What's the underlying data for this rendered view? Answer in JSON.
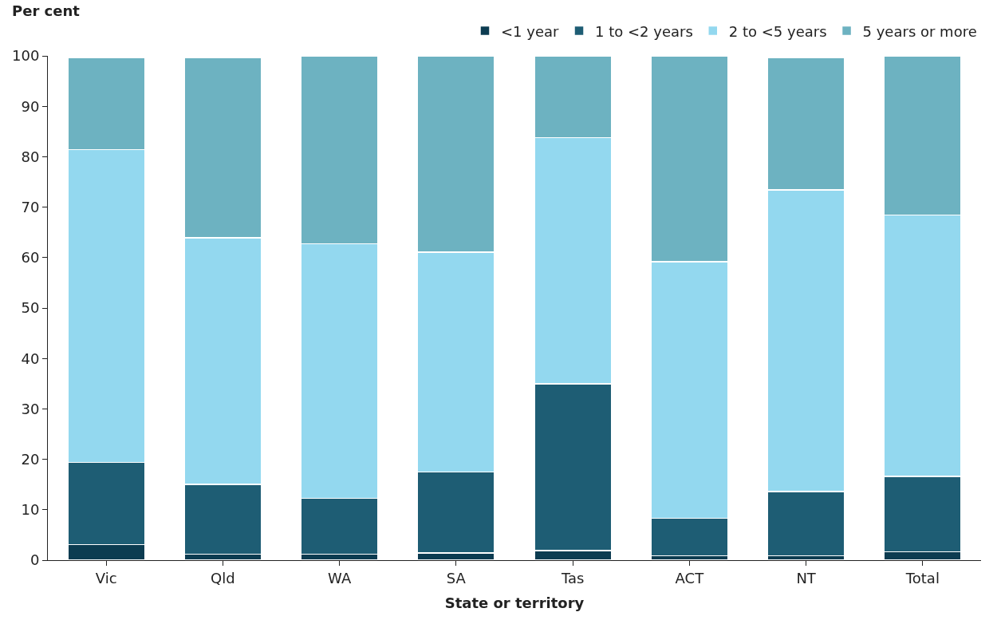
{
  "chart_data": {
    "type": "bar",
    "stacked": true,
    "ylabel": "Per cent",
    "xlabel": "State or territory",
    "categories": [
      "Vic",
      "Qld",
      "WA",
      "SA",
      "Tas",
      "ACT",
      "NT",
      "Total"
    ],
    "series": [
      {
        "name": "<1 year",
        "color": "#0c3c51",
        "values": [
          3.1,
          1.2,
          1.2,
          1.4,
          1.9,
          0.9,
          0.9,
          1.7
        ]
      },
      {
        "name": "1 to <2 years",
        "color": "#1e5d74",
        "values": [
          16.3,
          13.8,
          11.1,
          16.1,
          33.1,
          7.4,
          12.7,
          14.9
        ]
      },
      {
        "name": "2 to <5 years",
        "color": "#93d8ef",
        "values": [
          62.0,
          48.9,
          50.4,
          43.6,
          48.8,
          50.9,
          59.8,
          51.8
        ]
      },
      {
        "name": "5 years or more",
        "color": "#6db2c1",
        "values": [
          18.3,
          35.8,
          37.3,
          38.9,
          16.2,
          40.8,
          26.3,
          31.6
        ]
      }
    ],
    "ylim": [
      0,
      100
    ],
    "yticks": [
      0,
      10,
      20,
      30,
      40,
      50,
      60,
      70,
      80,
      90,
      100
    ],
    "legend": "top right"
  }
}
